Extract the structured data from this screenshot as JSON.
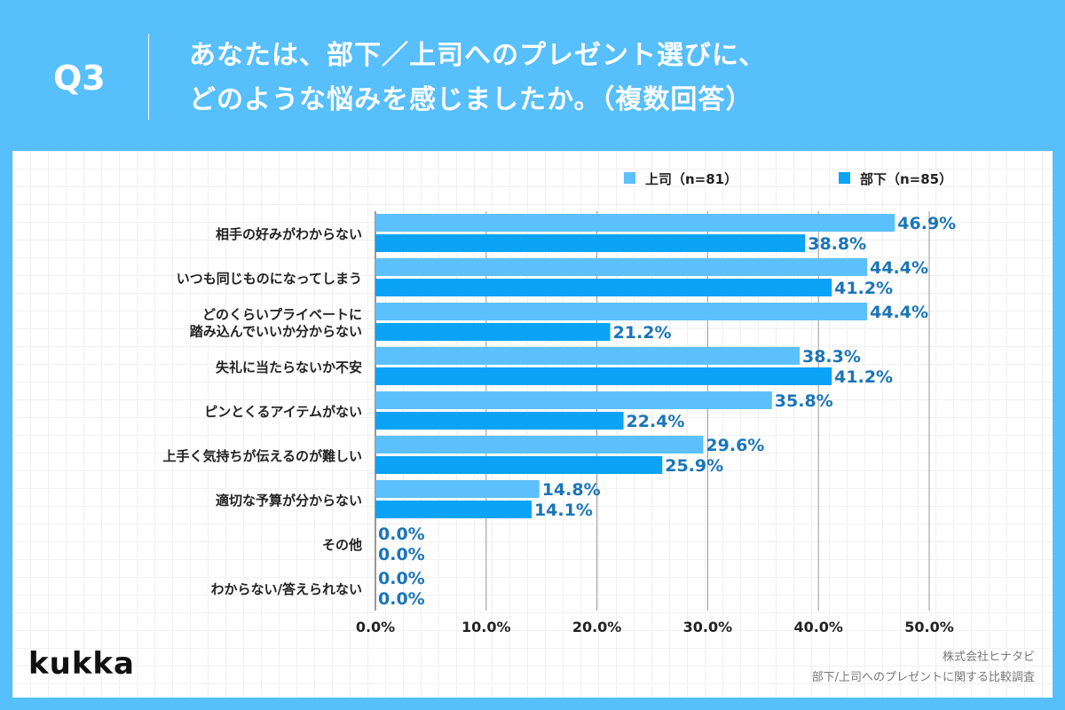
{
  "header": {
    "q": "Q3",
    "title_line1": "あなたは、部下／上司へのプレゼント選びに、",
    "title_line2": "どのような悩みを感じましたか。（複数回答）"
  },
  "colors": {
    "background": "#56bffc",
    "boss": "#5bc0fc",
    "subordinate": "#0aa3f5",
    "value_label": "#1a75b8"
  },
  "chart_data": {
    "type": "bar",
    "orientation": "horizontal",
    "categories": [
      "相手の好みがわからない",
      "いつも同じものになってしまう",
      "どのくらいプライベートに\n踏み込んでいいか分からない",
      "失礼に当たらないか不安",
      "ピンとくるアイテムがない",
      "上手く気持ちが伝えるのが難しい",
      "適切な予算が分からない",
      "その他",
      "わからない/答えられない"
    ],
    "series": [
      {
        "name": "上司（n=81）",
        "values": [
          46.9,
          44.4,
          44.4,
          38.3,
          35.8,
          29.6,
          14.8,
          0.0,
          0.0
        ]
      },
      {
        "name": "部下（n=85）",
        "values": [
          38.8,
          41.2,
          21.2,
          41.2,
          22.4,
          25.9,
          14.1,
          0.0,
          0.0
        ]
      }
    ],
    "xlim": [
      0,
      50
    ],
    "xticks": [
      "0.0%",
      "10.0%",
      "20.0%",
      "30.0%",
      "40.0%",
      "50.0%"
    ],
    "legend": "top-right",
    "grid": "vertical"
  },
  "footer": {
    "logo": "kukka",
    "source1": "株式会社ヒナタビ",
    "source2": "部下/上司へのプレゼントに関する比較調査"
  }
}
